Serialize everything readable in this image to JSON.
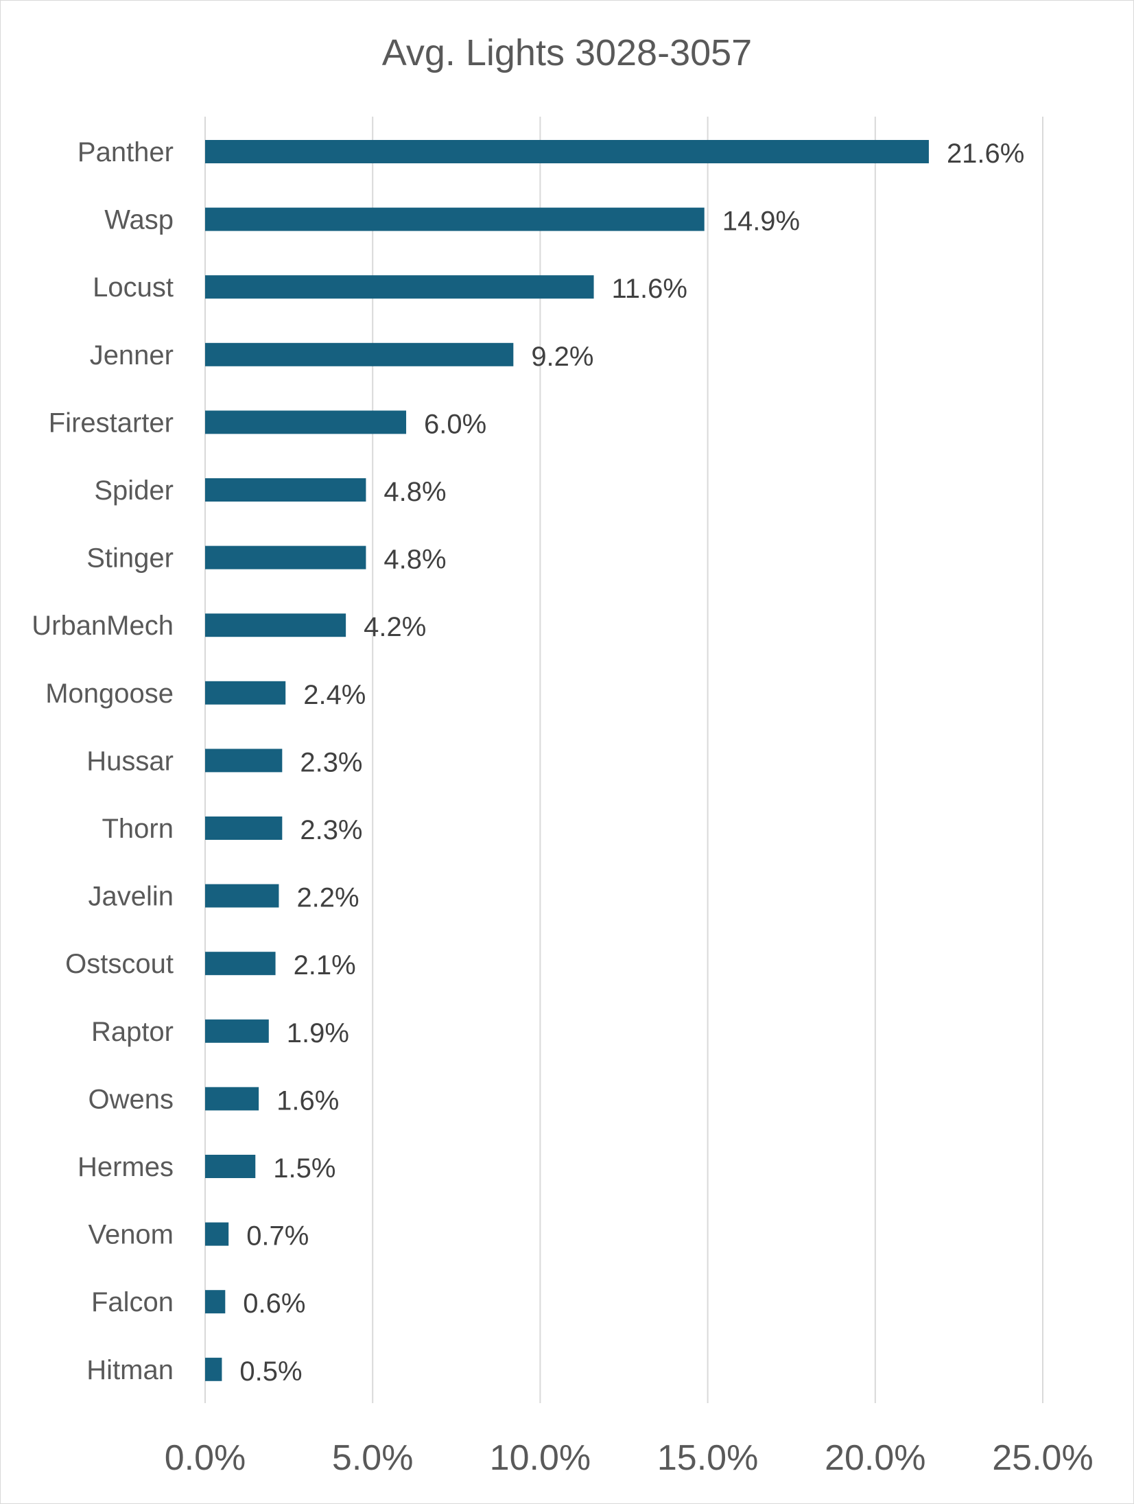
{
  "chart_data": {
    "type": "bar",
    "orientation": "horizontal",
    "title": "Avg. Lights 3028-3057",
    "xlabel": "",
    "ylabel": "",
    "categories": [
      "Panther",
      "Wasp",
      "Locust",
      "Jenner",
      "Firestarter",
      "Spider",
      "Stinger",
      "UrbanMech",
      "Mongoose",
      "Hussar",
      "Thorn",
      "Javelin",
      "Ostscout",
      "Raptor",
      "Owens",
      "Hermes",
      "Venom",
      "Falcon",
      "Hitman"
    ],
    "values": [
      21.6,
      14.9,
      11.6,
      9.2,
      6.0,
      4.8,
      4.8,
      4.2,
      2.4,
      2.3,
      2.3,
      2.2,
      2.1,
      1.9,
      1.6,
      1.5,
      0.7,
      0.6,
      0.5
    ],
    "value_labels": [
      "21.6%",
      "14.9%",
      "11.6%",
      "9.2%",
      "6.0%",
      "4.8%",
      "4.8%",
      "4.2%",
      "2.4%",
      "2.3%",
      "2.3%",
      "2.2%",
      "2.1%",
      "1.9%",
      "1.6%",
      "1.5%",
      "0.7%",
      "0.6%",
      "0.5%"
    ],
    "xlim": [
      0,
      25
    ],
    "ticks": [
      0,
      5,
      10,
      15,
      20,
      25
    ],
    "tick_labels": [
      "0.0%",
      "5.0%",
      "10.0%",
      "15.0%",
      "20.0%",
      "25.0%"
    ],
    "grid": true,
    "legend": "none",
    "bar_color": "#16607f",
    "grid_color": "#d9d9d9"
  }
}
